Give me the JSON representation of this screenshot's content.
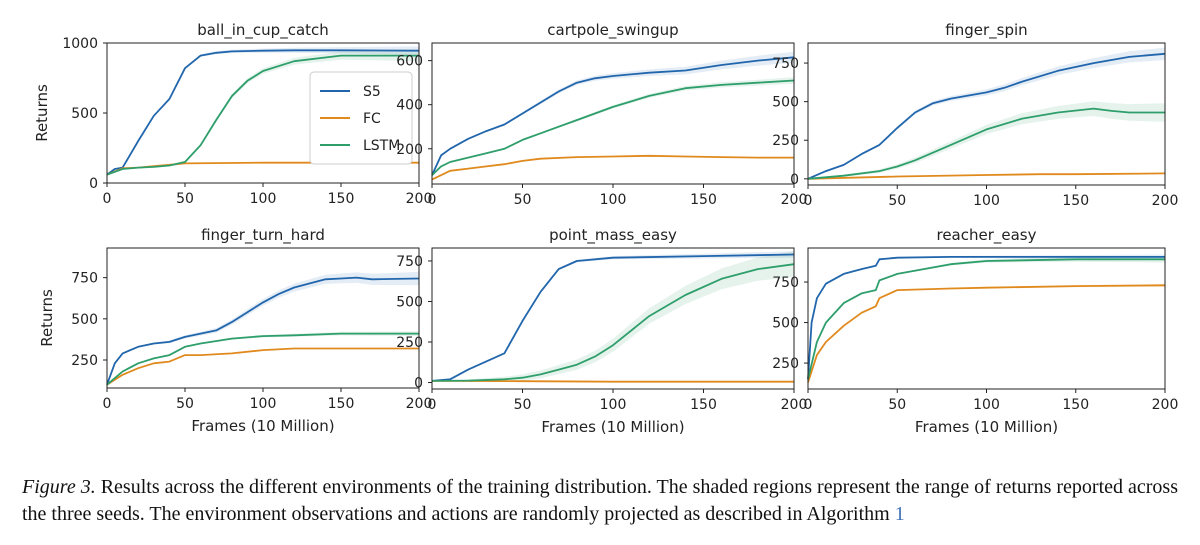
{
  "figure": {
    "ylabel": "Returns",
    "xlabel": "Frames (10 Million)",
    "colors": {
      "S5": "#2166ac",
      "FC": "#e08a1e",
      "LSTM": "#2e9e6b"
    },
    "legend": [
      "S5",
      "FC",
      "LSTM"
    ]
  },
  "caption": {
    "label": "Figure 3.",
    "text": "Results across the different environments of the training distribution. The shaded regions represent the range of returns reported across the three seeds. The environment observations and actions are randomly projected as described in Algorithm",
    "ref": "1"
  },
  "chart_data": [
    {
      "type": "line",
      "title": "ball_in_cup_catch",
      "xlabel": "",
      "ylabel": "Returns",
      "xlim": [
        0,
        200
      ],
      "ylim": [
        0,
        1000
      ],
      "xticks": [
        0,
        50,
        100,
        150,
        200
      ],
      "yticks": [
        0,
        500,
        1000
      ],
      "legend": "inside-right",
      "series": [
        {
          "name": "S5",
          "x": [
            0,
            5,
            10,
            20,
            30,
            40,
            50,
            60,
            70,
            80,
            100,
            120,
            150,
            200
          ],
          "y": [
            60,
            100,
            110,
            300,
            480,
            600,
            820,
            910,
            930,
            940,
            945,
            948,
            948,
            945
          ],
          "band": [
            0,
            30
          ]
        },
        {
          "name": "FC",
          "x": [
            0,
            10,
            20,
            30,
            40,
            50,
            100,
            150,
            200
          ],
          "y": [
            60,
            105,
            110,
            120,
            130,
            140,
            145,
            145,
            145
          ]
        },
        {
          "name": "LSTM",
          "x": [
            0,
            10,
            20,
            30,
            40,
            50,
            60,
            70,
            80,
            90,
            100,
            120,
            150,
            200
          ],
          "y": [
            60,
            100,
            110,
            115,
            125,
            150,
            270,
            450,
            620,
            730,
            800,
            870,
            910,
            910
          ],
          "band": [
            0,
            40
          ]
        }
      ]
    },
    {
      "type": "line",
      "title": "cartpole_swingup",
      "xlabel": "",
      "ylabel": "",
      "xlim": [
        0,
        200
      ],
      "ylim": [
        40,
        680
      ],
      "xticks": [
        0,
        50,
        100,
        150,
        200
      ],
      "yticks": [
        200,
        400,
        600
      ],
      "series": [
        {
          "name": "S5",
          "x": [
            0,
            5,
            10,
            20,
            30,
            40,
            50,
            60,
            70,
            80,
            90,
            100,
            120,
            140,
            160,
            180,
            200
          ],
          "y": [
            80,
            170,
            200,
            245,
            280,
            310,
            360,
            410,
            460,
            500,
            520,
            530,
            545,
            555,
            580,
            600,
            615
          ],
          "band": [
            0,
            25
          ]
        },
        {
          "name": "FC",
          "x": [
            0,
            10,
            20,
            30,
            40,
            50,
            60,
            80,
            100,
            120,
            140,
            160,
            180,
            200
          ],
          "y": [
            60,
            100,
            110,
            120,
            130,
            145,
            155,
            162,
            165,
            168,
            165,
            162,
            160,
            160
          ]
        },
        {
          "name": "LSTM",
          "x": [
            0,
            5,
            10,
            20,
            30,
            40,
            50,
            60,
            70,
            80,
            90,
            100,
            120,
            140,
            160,
            180,
            200
          ],
          "y": [
            80,
            120,
            140,
            160,
            180,
            200,
            240,
            270,
            300,
            330,
            360,
            390,
            440,
            475,
            490,
            500,
            510
          ],
          "band": [
            0,
            15
          ]
        }
      ]
    },
    {
      "type": "line",
      "title": "finger_spin",
      "xlabel": "",
      "ylabel": "",
      "xlim": [
        0,
        200
      ],
      "ylim": [
        -40,
        880
      ],
      "xticks": [
        0,
        50,
        100,
        150,
        200
      ],
      "yticks": [
        0,
        250,
        500,
        750
      ],
      "series": [
        {
          "name": "S5",
          "x": [
            0,
            10,
            20,
            30,
            40,
            50,
            60,
            70,
            80,
            90,
            100,
            110,
            120,
            140,
            160,
            180,
            200
          ],
          "y": [
            0,
            50,
            90,
            160,
            220,
            330,
            430,
            490,
            520,
            540,
            560,
            590,
            630,
            700,
            750,
            790,
            810
          ],
          "band": [
            0,
            40
          ]
        },
        {
          "name": "FC",
          "x": [
            0,
            50,
            100,
            130,
            150,
            200
          ],
          "y": [
            0,
            15,
            25,
            30,
            30,
            35
          ]
        },
        {
          "name": "LSTM",
          "x": [
            0,
            20,
            40,
            50,
            60,
            80,
            100,
            120,
            140,
            160,
            170,
            180,
            200
          ],
          "y": [
            0,
            20,
            50,
            80,
            120,
            220,
            320,
            390,
            430,
            455,
            440,
            430,
            430
          ],
          "band": [
            0,
            60
          ]
        }
      ]
    },
    {
      "type": "line",
      "title": "finger_turn_hard",
      "xlabel": "Frames (10 Million)",
      "ylabel": "Returns",
      "xlim": [
        0,
        200
      ],
      "ylim": [
        80,
        930
      ],
      "xticks": [
        0,
        50,
        100,
        150,
        200
      ],
      "yticks": [
        250,
        500,
        750
      ],
      "series": [
        {
          "name": "S5",
          "x": [
            0,
            5,
            10,
            20,
            30,
            40,
            50,
            60,
            70,
            80,
            90,
            100,
            110,
            120,
            140,
            150,
            160,
            170,
            200
          ],
          "y": [
            100,
            230,
            290,
            330,
            350,
            360,
            390,
            410,
            430,
            480,
            540,
            600,
            650,
            690,
            740,
            745,
            750,
            740,
            745
          ],
          "band": [
            0,
            40
          ]
        },
        {
          "name": "FC",
          "x": [
            0,
            10,
            20,
            30,
            40,
            50,
            60,
            80,
            100,
            120,
            140,
            160,
            200
          ],
          "y": [
            100,
            160,
            200,
            230,
            240,
            280,
            280,
            290,
            310,
            320,
            320,
            320,
            320
          ]
        },
        {
          "name": "LSTM",
          "x": [
            0,
            10,
            20,
            30,
            40,
            50,
            60,
            80,
            100,
            120,
            150,
            200
          ],
          "y": [
            100,
            180,
            230,
            260,
            280,
            330,
            350,
            380,
            395,
            400,
            410,
            410
          ],
          "band": [
            0,
            15
          ]
        }
      ]
    },
    {
      "type": "line",
      "title": "point_mass_easy",
      "xlabel": "Frames (10 Million)",
      "ylabel": "",
      "xlim": [
        0,
        200
      ],
      "ylim": [
        -40,
        830
      ],
      "xticks": [
        0,
        50,
        100,
        150,
        200
      ],
      "yticks": [
        0,
        250,
        500,
        750
      ],
      "series": [
        {
          "name": "S5",
          "x": [
            0,
            10,
            20,
            30,
            40,
            50,
            60,
            70,
            80,
            100,
            150,
            200
          ],
          "y": [
            10,
            20,
            80,
            130,
            180,
            380,
            560,
            700,
            750,
            770,
            780,
            790
          ],
          "band": [
            0,
            20
          ]
        },
        {
          "name": "FC",
          "x": [
            0,
            50,
            100,
            150,
            200
          ],
          "y": [
            10,
            8,
            5,
            5,
            5
          ]
        },
        {
          "name": "LSTM",
          "x": [
            0,
            20,
            40,
            50,
            60,
            70,
            80,
            90,
            100,
            120,
            140,
            160,
            180,
            200
          ],
          "y": [
            10,
            12,
            20,
            30,
            50,
            80,
            110,
            160,
            230,
            410,
            540,
            640,
            700,
            730
          ],
          "band": [
            0,
            80
          ]
        }
      ]
    },
    {
      "type": "line",
      "title": "reacher_easy",
      "xlabel": "Frames (10 Million)",
      "ylabel": "",
      "xlim": [
        0,
        200
      ],
      "ylim": [
        90,
        960
      ],
      "xticks": [
        0,
        50,
        100,
        150,
        200
      ],
      "yticks": [
        250,
        500,
        750
      ],
      "series": [
        {
          "name": "S5",
          "x": [
            0,
            2,
            5,
            10,
            20,
            30,
            38,
            40,
            50,
            80,
            120,
            160,
            200
          ],
          "y": [
            150,
            500,
            650,
            740,
            800,
            830,
            850,
            890,
            900,
            905,
            905,
            905,
            905
          ],
          "band": [
            0,
            15
          ]
        },
        {
          "name": "FC",
          "x": [
            0,
            5,
            10,
            20,
            30,
            38,
            40,
            50,
            80,
            100,
            150,
            200
          ],
          "y": [
            130,
            300,
            380,
            480,
            560,
            600,
            650,
            700,
            710,
            715,
            725,
            730
          ],
          "band": [
            0,
            10
          ]
        },
        {
          "name": "LSTM",
          "x": [
            0,
            5,
            10,
            20,
            30,
            38,
            40,
            50,
            80,
            100,
            150,
            200
          ],
          "y": [
            150,
            380,
            500,
            620,
            680,
            700,
            760,
            800,
            860,
            880,
            890,
            890
          ],
          "band": [
            0,
            20
          ]
        }
      ]
    }
  ]
}
